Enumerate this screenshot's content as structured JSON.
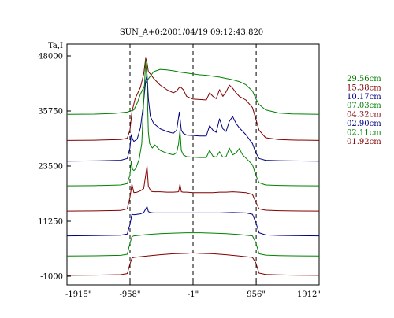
{
  "chart_data": {
    "type": "line",
    "title": "SUN_A+0:2001/04/19 09:12:43.820",
    "ylabel": "Ta,I",
    "xlabel": "",
    "x_unit": "arcsec",
    "xlim": [
      -1915,
      1912
    ],
    "ylim": [
      -1000,
      48000
    ],
    "x_ticks": [
      -1915,
      -958,
      -1,
      956,
      1912
    ],
    "x_tick_labels": [
      "-1915\"",
      "-958\"",
      "-1\"",
      "956\"",
      "1912\""
    ],
    "y_ticks": [
      -1000,
      11250,
      23500,
      35750,
      48000
    ],
    "y_tick_labels": [
      "-1000",
      "11250",
      "23500",
      "35750",
      "48000"
    ],
    "reference_lines_x": [
      -958,
      -1,
      956
    ],
    "legend_position": "right",
    "grid": false,
    "series": [
      {
        "name": "29.56cm",
        "color": "#008000",
        "x": [
          -1915,
          -1500,
          -1200,
          -1000,
          -900,
          -850,
          -800,
          -700,
          -600,
          -500,
          -400,
          -300,
          -200,
          -100,
          0,
          100,
          200,
          300,
          400,
          500,
          600,
          700,
          800,
          900,
          950,
          1000,
          1100,
          1300,
          1500,
          1912
        ],
        "y": [
          35000,
          35050,
          35200,
          35500,
          36000,
          37500,
          39500,
          42500,
          44500,
          45000,
          44900,
          44700,
          44400,
          44200,
          44000,
          43800,
          43700,
          43500,
          43300,
          43000,
          42700,
          42300,
          41600,
          40200,
          38500,
          37200,
          36000,
          35300,
          35100,
          35000
        ]
      },
      {
        "name": "15.38cm",
        "color": "#800000",
        "x": [
          -1915,
          -1500,
          -1100,
          -1000,
          -960,
          -930,
          -880,
          -800,
          -750,
          -720,
          -700,
          -680,
          -650,
          -600,
          -500,
          -400,
          -300,
          -250,
          -200,
          -150,
          -100,
          0,
          100,
          200,
          250,
          300,
          350,
          400,
          450,
          500,
          550,
          600,
          650,
          700,
          800,
          900,
          950,
          1000,
          1100,
          1300,
          1500,
          1912
        ],
        "y": [
          29200,
          29250,
          29400,
          29700,
          31500,
          35500,
          38500,
          41000,
          44000,
          47500,
          46500,
          44500,
          44000,
          43000,
          41500,
          40500,
          39800,
          40200,
          41200,
          40500,
          39000,
          38400,
          38300,
          38200,
          39800,
          39000,
          38500,
          40500,
          39000,
          40000,
          41500,
          40800,
          39800,
          39000,
          38200,
          36500,
          34000,
          31500,
          29800,
          29400,
          29300,
          29200
        ]
      },
      {
        "name": "10.17cm",
        "color": "#000080",
        "x": [
          -1915,
          -1500,
          -1100,
          -1000,
          -960,
          -940,
          -920,
          -900,
          -850,
          -800,
          -760,
          -720,
          -700,
          -680,
          -650,
          -600,
          -500,
          -400,
          -300,
          -250,
          -210,
          -180,
          -150,
          -100,
          0,
          100,
          200,
          250,
          300,
          350,
          400,
          450,
          500,
          550,
          600,
          650,
          700,
          800,
          900,
          950,
          1000,
          1100,
          1300,
          1500,
          1912
        ],
        "y": [
          24600,
          24650,
          24800,
          25200,
          27500,
          30500,
          29500,
          29000,
          29500,
          32000,
          36500,
          42500,
          44000,
          38500,
          34500,
          33000,
          31800,
          31200,
          30800,
          31500,
          35500,
          31500,
          30800,
          30400,
          30300,
          30200,
          30200,
          32500,
          31500,
          31000,
          34000,
          31800,
          31200,
          33500,
          34500,
          33000,
          32000,
          30500,
          28500,
          26500,
          25200,
          24800,
          24700,
          24650,
          24600
        ]
      },
      {
        "name": "07.03cm",
        "color": "#008000",
        "x": [
          -1915,
          -1500,
          -1100,
          -1000,
          -960,
          -940,
          -920,
          -900,
          -870,
          -820,
          -780,
          -750,
          -720,
          -700,
          -680,
          -660,
          -620,
          -580,
          -500,
          -420,
          -350,
          -300,
          -250,
          -220,
          -200,
          -180,
          -150,
          -100,
          0,
          100,
          200,
          250,
          300,
          350,
          400,
          450,
          500,
          550,
          600,
          650,
          700,
          750,
          800,
          900,
          950,
          1000,
          1100,
          1300,
          1500,
          1912
        ],
        "y": [
          19100,
          19150,
          19300,
          19600,
          21500,
          24500,
          22800,
          22500,
          23000,
          25000,
          28500,
          38000,
          47000,
          42000,
          31000,
          28500,
          27500,
          28200,
          27000,
          26500,
          26200,
          26000,
          26500,
          28500,
          31500,
          27000,
          26000,
          25600,
          25500,
          25400,
          25400,
          27000,
          25700,
          25500,
          26700,
          25500,
          25600,
          27500,
          26000,
          26400,
          27400,
          26000,
          25300,
          23800,
          21500,
          19800,
          19300,
          19200,
          19150,
          19100
        ]
      },
      {
        "name": "04.32cm",
        "color": "#800000",
        "x": [
          -1915,
          -1500,
          -1100,
          -1000,
          -960,
          -930,
          -900,
          -850,
          -800,
          -750,
          -720,
          -700,
          -680,
          -640,
          -600,
          -500,
          -400,
          -300,
          -220,
          -200,
          -180,
          -150,
          -100,
          0,
          100,
          200,
          300,
          400,
          500,
          600,
          700,
          800,
          900,
          950,
          1000,
          1100,
          1300,
          1500,
          1912
        ],
        "y": [
          13500,
          13550,
          13650,
          14000,
          16500,
          19500,
          17600,
          17700,
          18000,
          18500,
          21500,
          23500,
          19000,
          17900,
          17800,
          17800,
          17700,
          17700,
          17800,
          19500,
          17800,
          17700,
          17700,
          17600,
          17600,
          17600,
          17600,
          17700,
          17700,
          17800,
          17700,
          17600,
          17200,
          15500,
          14000,
          13700,
          13600,
          13550,
          13500
        ]
      },
      {
        "name": "02.90cm",
        "color": "#000080",
        "x": [
          -1915,
          -1500,
          -1100,
          -1000,
          -960,
          -930,
          -900,
          -800,
          -750,
          -700,
          -680,
          -650,
          -600,
          -400,
          -200,
          0,
          200,
          400,
          600,
          800,
          900,
          950,
          1000,
          1100,
          1300,
          1500,
          1912
        ],
        "y": [
          8000,
          8050,
          8150,
          8400,
          10500,
          12800,
          12700,
          12900,
          13200,
          14500,
          13400,
          13200,
          13100,
          13100,
          13100,
          13100,
          13100,
          13100,
          13200,
          13100,
          12800,
          11000,
          8700,
          8200,
          8100,
          8050,
          8000
        ]
      },
      {
        "name": "02.11cm",
        "color": "#008000",
        "x": [
          -1915,
          -1500,
          -1100,
          -1000,
          -960,
          -930,
          -900,
          -700,
          -500,
          -300,
          -100,
          0,
          100,
          300,
          500,
          700,
          900,
          950,
          1000,
          1100,
          1300,
          1500,
          1912
        ],
        "y": [
          3500,
          3550,
          3650,
          3900,
          6300,
          7800,
          8000,
          8300,
          8500,
          8600,
          8700,
          8700,
          8700,
          8600,
          8500,
          8300,
          8000,
          6500,
          4000,
          3700,
          3600,
          3550,
          3500
        ]
      },
      {
        "name": "01.92cm",
        "color": "#800000",
        "x": [
          -1915,
          -1500,
          -1100,
          -1000,
          -960,
          -930,
          -900,
          -700,
          -500,
          -300,
          -100,
          0,
          100,
          300,
          500,
          700,
          900,
          950,
          1000,
          1100,
          1300,
          1500,
          1912
        ],
        "y": [
          -800,
          -750,
          -650,
          -400,
          1700,
          3000,
          3200,
          3500,
          3800,
          4000,
          4100,
          4200,
          4100,
          4000,
          3800,
          3500,
          3200,
          2000,
          -300,
          -600,
          -700,
          -750,
          -800
        ]
      }
    ]
  }
}
